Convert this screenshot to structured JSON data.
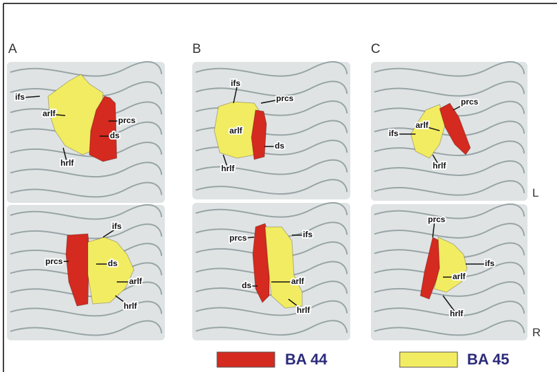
{
  "panels": [
    {
      "letter": "A",
      "views": [
        {
          "labels": [
            "ifs",
            "arlf",
            "prcs",
            "ds",
            "hrlf"
          ]
        },
        {
          "labels": [
            "ifs",
            "prcs",
            "ds",
            "arlf",
            "hrlf"
          ]
        }
      ]
    },
    {
      "letter": "B",
      "views": [
        {
          "labels": [
            "ifs",
            "prcs",
            "arlf",
            "ds",
            "hrlf"
          ]
        },
        {
          "labels": [
            "prcs",
            "ifs",
            "arlf",
            "ds",
            "hrlf"
          ]
        }
      ]
    },
    {
      "letter": "C",
      "views": [
        {
          "labels": [
            "prcs",
            "arlf",
            "ifs",
            "hrlf"
          ],
          "side": "L"
        },
        {
          "labels": [
            "prcs",
            "ifs",
            "arlf",
            "hrlf"
          ],
          "side": "R"
        }
      ]
    }
  ],
  "legend": [
    {
      "label": "BA 44",
      "color": "#d42a1f"
    },
    {
      "label": "BA 45",
      "color": "#f2ec62"
    }
  ]
}
